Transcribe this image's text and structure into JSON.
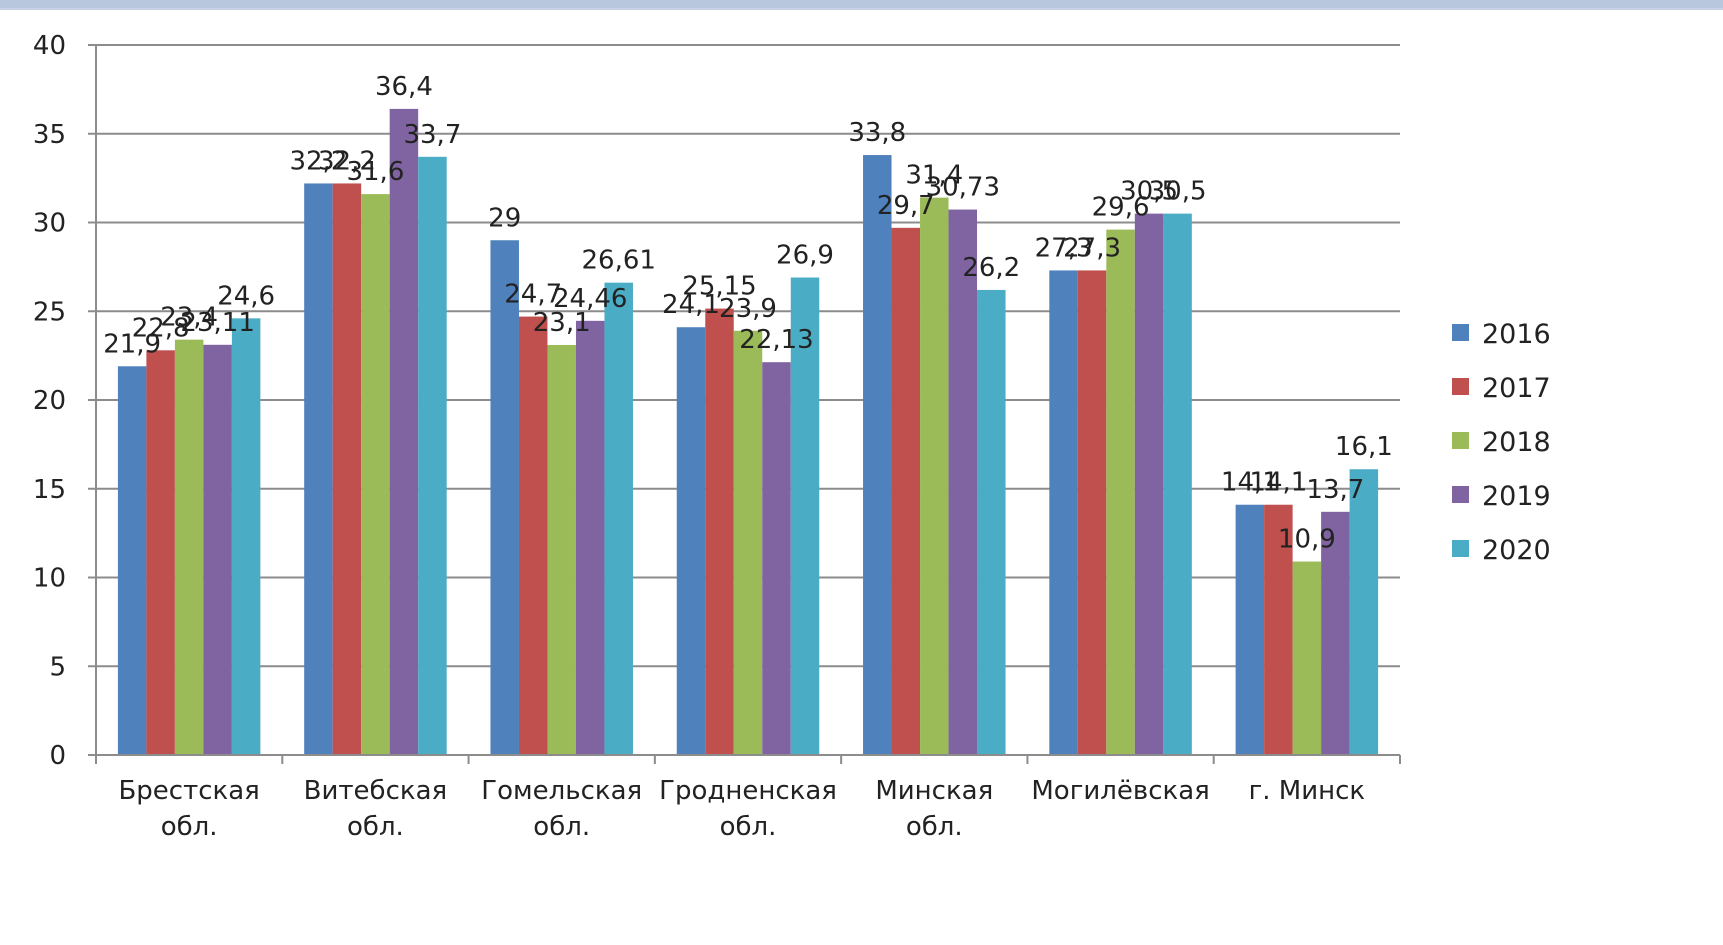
{
  "chart_data": {
    "type": "bar",
    "title": "",
    "xlabel": "",
    "ylabel": "",
    "ylim": [
      0,
      40
    ],
    "yticks": [
      "0",
      "5",
      "10",
      "15",
      "20",
      "25",
      "30",
      "35",
      "40"
    ],
    "grid": true,
    "legend_position": "right",
    "categories": [
      [
        "Брестская",
        "обл."
      ],
      [
        "Витебская",
        "обл."
      ],
      [
        "Гомельская",
        "обл."
      ],
      [
        "Гродненская",
        "обл."
      ],
      [
        "Минская",
        "обл."
      ],
      [
        "Могилёвская"
      ],
      [
        "г. Минск"
      ]
    ],
    "series": [
      {
        "name": "2016",
        "color": "#4f81bd",
        "values": [
          21.9,
          32.2,
          29,
          24.1,
          33.8,
          27.3,
          14.1
        ],
        "labels": [
          "21,9",
          "32,2",
          "29",
          "24,1",
          "33,8",
          "27,3",
          "14,1"
        ]
      },
      {
        "name": "2017",
        "color": "#c0504d",
        "values": [
          22.8,
          32.2,
          24.7,
          25.15,
          29.7,
          27.3,
          14.1
        ],
        "labels": [
          "22,8",
          "32,2",
          "24,7",
          "25,15",
          "29,7",
          "27,3",
          "14,1"
        ]
      },
      {
        "name": "2018",
        "color": "#9bbb59",
        "values": [
          23.4,
          31.6,
          23.1,
          23.9,
          31.4,
          29.6,
          10.9
        ],
        "labels": [
          "23,4",
          "31,6",
          "23,1",
          "23,9",
          "31,4",
          "29,6",
          "10,9"
        ]
      },
      {
        "name": "2019",
        "color": "#8064a2",
        "values": [
          23.11,
          36.4,
          24.46,
          22.13,
          30.73,
          30.5,
          13.7
        ],
        "labels": [
          "23,11",
          "36,4",
          "24,46",
          "22,13",
          "30,73",
          "30,5",
          "13,7"
        ]
      },
      {
        "name": "2020",
        "color": "#4bacc6",
        "values": [
          24.6,
          33.7,
          26.61,
          26.9,
          26.2,
          30.5,
          16.1
        ],
        "labels": [
          "24,6",
          "33,7",
          "26,61",
          "26,9",
          "26,2",
          "30,5",
          "16,1"
        ]
      }
    ]
  }
}
